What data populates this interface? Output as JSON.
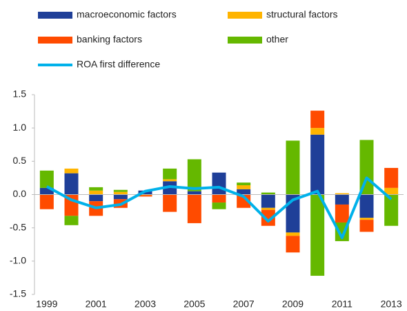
{
  "chart_data": {
    "type": "bar",
    "stacked": true,
    "categories": [
      "1999",
      null,
      "2001",
      null,
      "2003",
      null,
      "2005",
      null,
      "2007",
      null,
      "2009",
      null,
      "2011",
      null,
      "2013"
    ],
    "series": [
      {
        "name": "macroeconomic factors",
        "color": "#1f3f98",
        "values": [
          0.1,
          0.32,
          -0.1,
          -0.07,
          0.06,
          0.2,
          0.05,
          0.33,
          0.08,
          -0.2,
          -0.57,
          0.9,
          -0.15,
          -0.35,
          0
        ]
      },
      {
        "name": "structural factors",
        "color": "#ffb400",
        "values": [
          0,
          0.07,
          0.06,
          0.04,
          -0.01,
          0.03,
          0,
          0,
          0.06,
          -0.03,
          -0.05,
          0.1,
          0.02,
          -0.03,
          0.1
        ]
      },
      {
        "name": "banking factors",
        "color": "#ff4b00",
        "values": [
          -0.22,
          -0.32,
          -0.22,
          -0.13,
          -0.02,
          -0.26,
          -0.43,
          -0.12,
          -0.2,
          -0.24,
          -0.25,
          0.26,
          -0.27,
          -0.18,
          0.3
        ]
      },
      {
        "name": "other",
        "color": "#65b800",
        "values": [
          0.26,
          -0.14,
          0.05,
          0.03,
          0,
          0.16,
          0.48,
          -0.1,
          0.04,
          0.03,
          0.81,
          -1.22,
          -0.28,
          0.82,
          -0.47
        ]
      },
      {
        "name": "ROA first difference",
        "type": "line",
        "color": "#00b1ea",
        "values": [
          0.12,
          -0.08,
          -0.2,
          -0.15,
          0.05,
          0.12,
          0.09,
          0.11,
          -0.03,
          -0.4,
          -0.08,
          0.05,
          -0.65,
          0.25,
          -0.07
        ]
      }
    ],
    "ylim": [
      -1.5,
      1.5
    ],
    "yticks": [
      {
        "value": -1.5,
        "label": "-1.5"
      },
      {
        "value": -1,
        "label": "-1.0"
      },
      {
        "value": -0.5,
        "label": "-0.5"
      },
      {
        "value": 0,
        "label": "0.0"
      },
      {
        "value": 0.5,
        "label": "0.5"
      },
      {
        "value": 1,
        "label": "1.0"
      },
      {
        "value": 1.5,
        "label": "1.5"
      }
    ],
    "grid": false
  }
}
